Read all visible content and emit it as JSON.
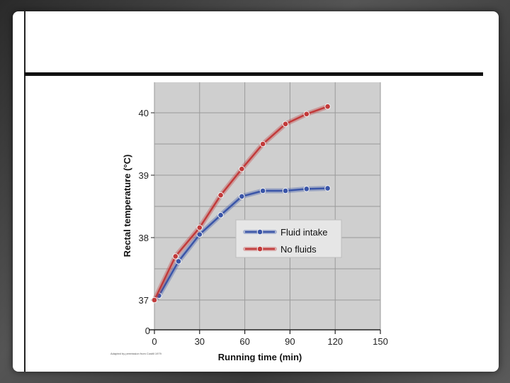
{
  "chart_data": {
    "type": "line",
    "title": "",
    "xlabel": "Running time (min)",
    "ylabel": "Rectal temperature (°C)",
    "xlim": [
      0,
      150
    ],
    "ylim": [
      37,
      40.4
    ],
    "x_ticks": [
      0,
      30,
      60,
      90,
      120,
      150
    ],
    "y_ticks": [
      37,
      38,
      39,
      40
    ],
    "y_zero_label": "0",
    "grid": true,
    "legend_position": "center-right",
    "series": [
      {
        "name": "Fluid intake",
        "color": "#3a55a8",
        "points": [
          [
            0,
            37.0
          ],
          [
            3,
            37.07
          ],
          [
            16,
            37.62
          ],
          [
            30,
            38.05
          ],
          [
            44,
            38.36
          ],
          [
            58,
            38.66
          ],
          [
            72,
            38.75
          ],
          [
            87,
            38.75
          ],
          [
            101,
            38.78
          ],
          [
            115,
            38.79
          ]
        ]
      },
      {
        "name": "No fluids",
        "color": "#c23a3a",
        "points": [
          [
            0,
            37.0
          ],
          [
            14,
            37.7
          ],
          [
            30,
            38.16
          ],
          [
            44,
            38.68
          ],
          [
            58,
            39.1
          ],
          [
            72,
            39.5
          ],
          [
            87,
            39.82
          ],
          [
            101,
            39.98
          ],
          [
            115,
            40.1
          ]
        ]
      }
    ]
  },
  "credit": "Adapted by permission from Costill 1979"
}
